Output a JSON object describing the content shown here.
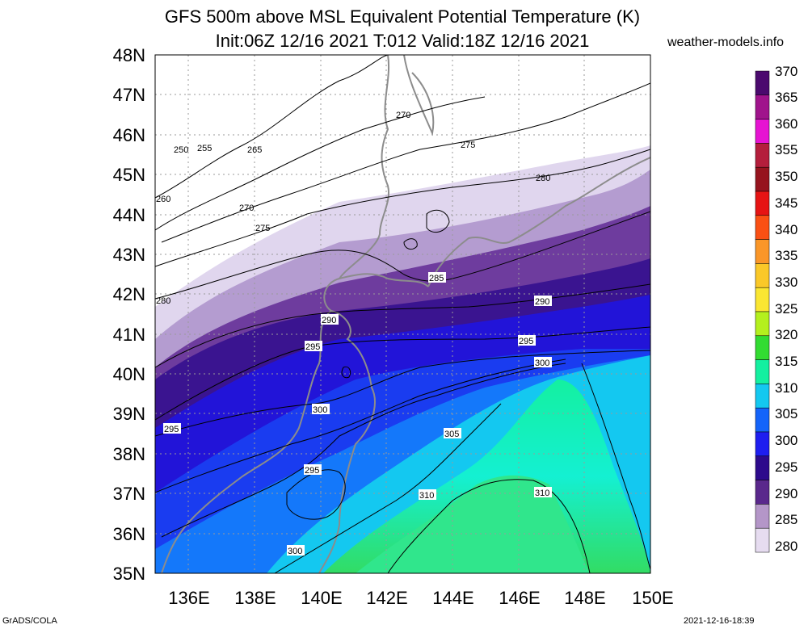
{
  "header": {
    "title": "GFS 500m above MSL Equivalent Potential Temperature (K)",
    "subtitle": "Init:06Z 12/16 2021 T:012 Valid:18Z 12/16 2021",
    "site": "weather-models.info"
  },
  "footer": {
    "left": "GrADS/COLA",
    "right": "2021-12-16-18:39"
  },
  "map": {
    "lat_labels": [
      "48N",
      "47N",
      "46N",
      "45N",
      "44N",
      "43N",
      "42N",
      "41N",
      "40N",
      "39N",
      "38N",
      "37N",
      "36N",
      "35N"
    ],
    "lon_labels": [
      "136E",
      "138E",
      "140E",
      "142E",
      "144E",
      "146E",
      "148E",
      "150E"
    ],
    "contour_labels": [
      "250",
      "255",
      "260",
      "265",
      "270",
      "270",
      "275",
      "275",
      "280",
      "280",
      "285",
      "290",
      "290",
      "295",
      "295",
      "295",
      "295",
      "300",
      "300",
      "300",
      "305",
      "310",
      "310"
    ]
  },
  "colorbar": {
    "labels": [
      "370",
      "365",
      "360",
      "355",
      "350",
      "345",
      "340",
      "335",
      "330",
      "325",
      "320",
      "315",
      "310",
      "305",
      "300",
      "295",
      "290",
      "285",
      "280"
    ],
    "colors": [
      "#4b0a6e",
      "#a0148c",
      "#e614d2",
      "#b41e3c",
      "#96141e",
      "#e61414",
      "#fa5014",
      "#fa9628",
      "#fac828",
      "#fae632",
      "#b4f01e",
      "#32dc32",
      "#14f0a0",
      "#14c8f0",
      "#1464fa",
      "#1e1ef0",
      "#2d0a8c",
      "#5a288c",
      "#b496c8",
      "#e6dcf0"
    ]
  }
}
